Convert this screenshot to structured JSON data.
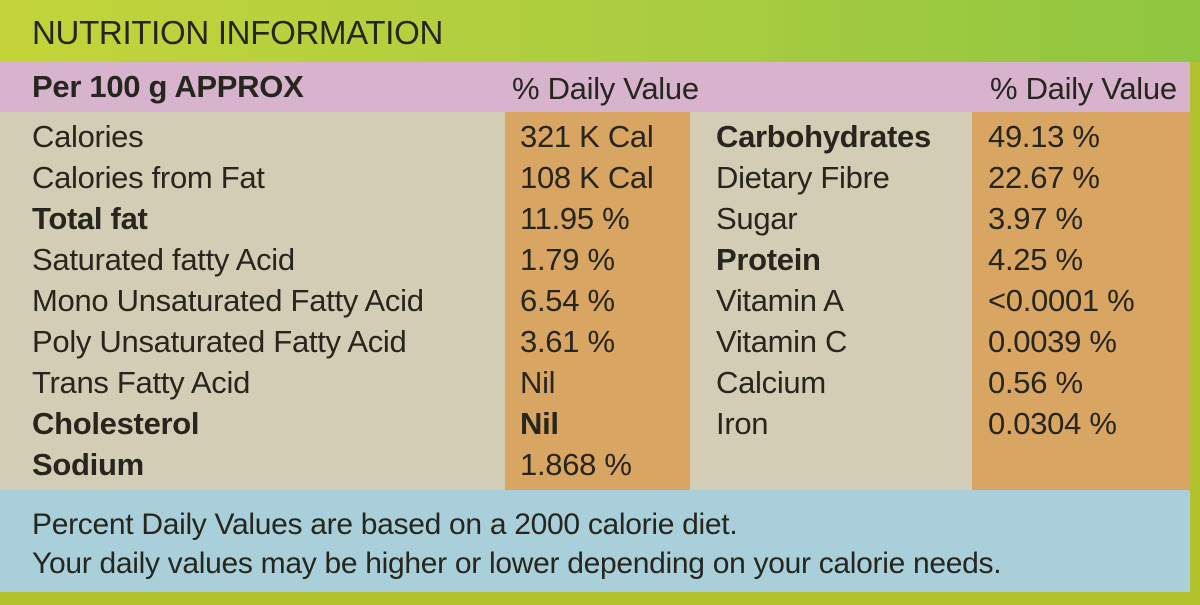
{
  "header": {
    "title": "NUTRITION INFORMATION"
  },
  "subheader": {
    "basis": "Per 100 g APPROX",
    "left_column_heading": "% Daily Value",
    "right_column_heading": "% Daily Value"
  },
  "left_rows": [
    {
      "label": "Calories",
      "value": "321 K Cal",
      "bold": false,
      "value_bold": false
    },
    {
      "label": "Calories from Fat",
      "value": "108 K Cal",
      "bold": false,
      "value_bold": false
    },
    {
      "label": "Total fat",
      "value": "11.95 %",
      "bold": true,
      "value_bold": false
    },
    {
      "label": "Saturated fatty Acid",
      "value": "1.79 %",
      "bold": false,
      "value_bold": false
    },
    {
      "label": "Mono Unsaturated Fatty Acid",
      "value": "6.54 %",
      "bold": false,
      "value_bold": false
    },
    {
      "label": "Poly Unsaturated Fatty Acid",
      "value": "3.61 %",
      "bold": false,
      "value_bold": false
    },
    {
      "label": "Trans Fatty Acid",
      "value": "Nil",
      "bold": false,
      "value_bold": false
    },
    {
      "label": "Cholesterol",
      "value": "Nil",
      "bold": true,
      "value_bold": true
    },
    {
      "label": "Sodium",
      "value": "1.868 %",
      "bold": true,
      "value_bold": false
    }
  ],
  "right_rows": [
    {
      "label": "Carbohydrates",
      "value": "49.13 %",
      "bold": true,
      "value_bold": false
    },
    {
      "label": "Dietary Fibre",
      "value": "22.67 %",
      "bold": false,
      "value_bold": false
    },
    {
      "label": "Sugar",
      "value": "3.97 %",
      "bold": false,
      "value_bold": false
    },
    {
      "label": "Protein",
      "value": "4.25 %",
      "bold": true,
      "value_bold": false
    },
    {
      "label": "Vitamin A",
      "value": "<0.0001 %",
      "bold": false,
      "value_bold": false
    },
    {
      "label": "Vitamin C",
      "value": "0.0039 %",
      "bold": false,
      "value_bold": false
    },
    {
      "label": "Calcium",
      "value": "0.56 %",
      "bold": false,
      "value_bold": false
    },
    {
      "label": "Iron",
      "value": "0.0304 %",
      "bold": false,
      "value_bold": false
    }
  ],
  "footer": {
    "lines": [
      "Percent Daily Values are based on a 2000 calorie diet.",
      "Your daily values may be higher or lower depending on your calorie needs."
    ]
  }
}
